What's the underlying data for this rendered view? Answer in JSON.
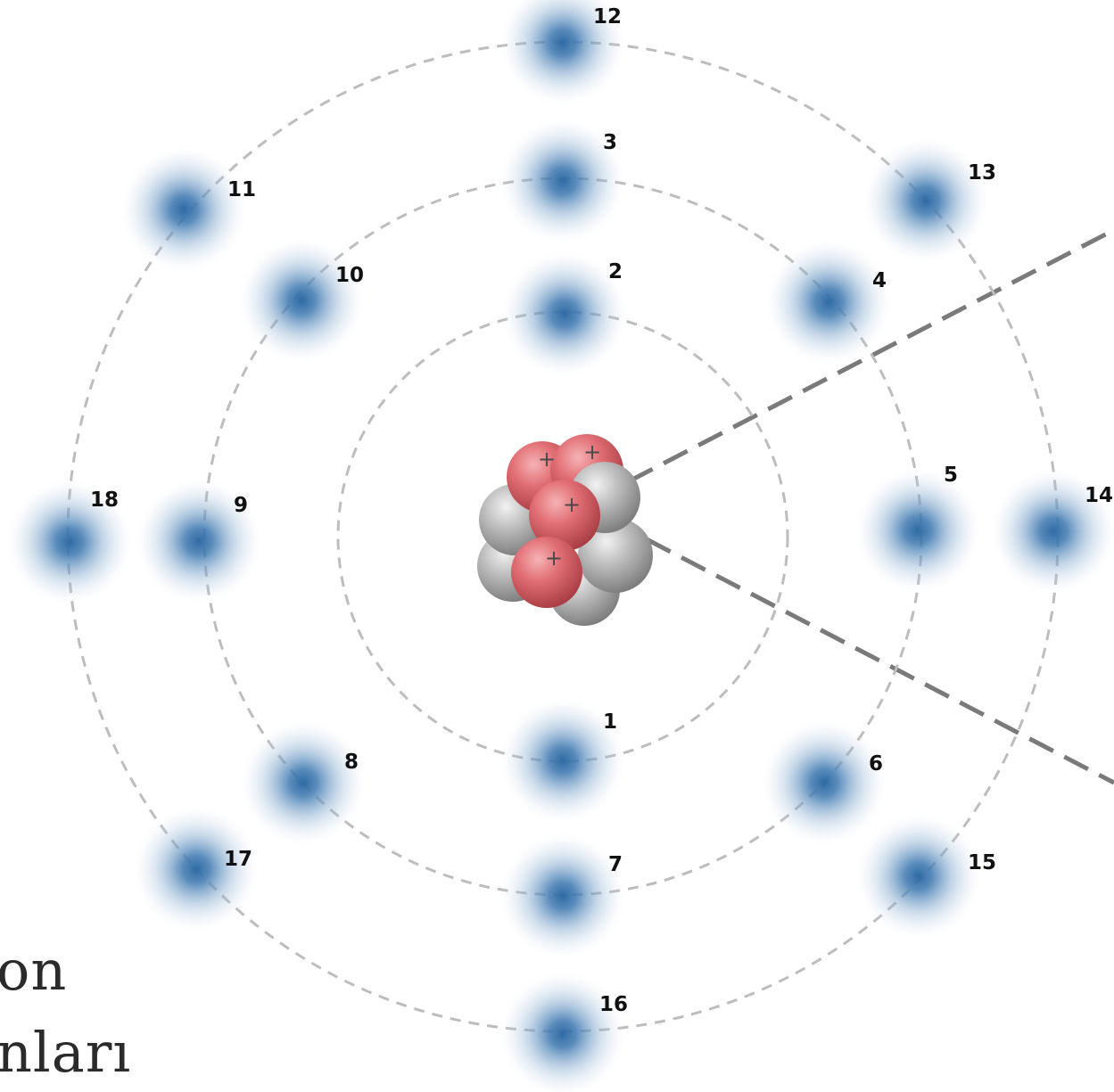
{
  "caption": {
    "line1": "on",
    "line2": "nları"
  },
  "nucleus": {
    "proton_symbol": "+",
    "proton_count": 4,
    "neutron_count": 5
  },
  "shells": [
    {
      "name": "shell-1",
      "electrons": [
        "1",
        "2"
      ]
    },
    {
      "name": "shell-2",
      "electrons": [
        "3",
        "4",
        "5",
        "6",
        "7",
        "8",
        "9",
        "10"
      ]
    },
    {
      "name": "shell-3",
      "electrons": [
        "11",
        "12",
        "13",
        "14",
        "15",
        "16",
        "17",
        "18"
      ]
    }
  ],
  "colors": {
    "proton": "#d9656a",
    "neutron": "#b5b5b5",
    "electron": "#2f6aa3",
    "orbit": "#bdbdbd",
    "pointer": "#7a7a7a"
  }
}
